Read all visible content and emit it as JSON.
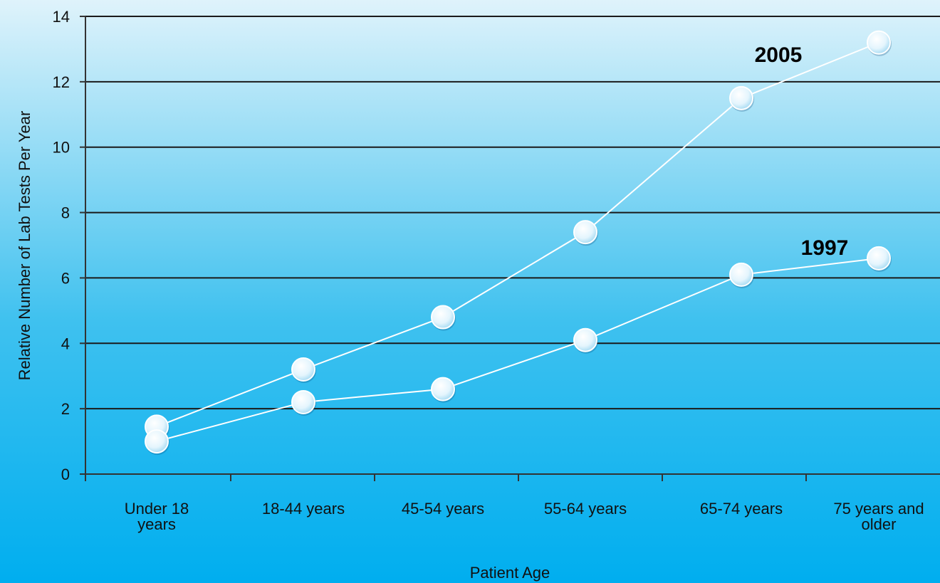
{
  "chart_data": {
    "type": "line",
    "title": "",
    "xlabel": "Patient Age",
    "ylabel": "Relative Number of Lab Tests Per Year",
    "ylim": [
      0,
      14
    ],
    "yticks": [
      0,
      2,
      4,
      6,
      8,
      10,
      12,
      14
    ],
    "grid": true,
    "legend": "none",
    "categories": [
      [
        "Under 18",
        "years"
      ],
      [
        "18-44 years"
      ],
      [
        "45-54 years"
      ],
      [
        "55-64 years"
      ],
      [
        "65-74 years"
      ],
      [
        "75 years and",
        "older"
      ]
    ],
    "series": [
      {
        "name": "2005",
        "values": [
          1.45,
          3.2,
          4.8,
          7.4,
          11.5,
          13.2
        ]
      },
      {
        "name": "1997",
        "values": [
          1.0,
          2.2,
          2.6,
          4.1,
          6.1,
          6.6
        ]
      }
    ],
    "colors": {
      "background_top": "#dff3fb",
      "background_bottom": "#00aeef",
      "line": "#ffffff",
      "marker_fill": "#e8f7ff",
      "gridline": "#1a1a1a"
    }
  }
}
